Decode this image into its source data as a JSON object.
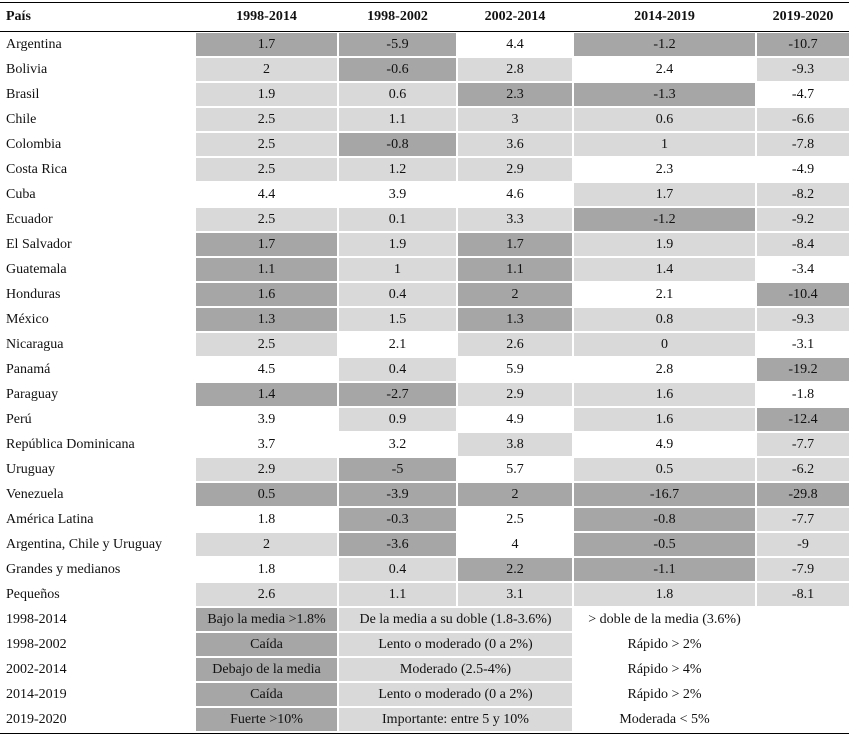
{
  "palette": {
    "dark": "#a6a6a6",
    "light": "#d9d9d9",
    "white": "#ffffff"
  },
  "table": {
    "header": [
      "País",
      "1998-2014",
      "1998-2002",
      "2002-2014",
      "2014-2019",
      "2019-2020"
    ],
    "rows": [
      {
        "cells": [
          "Argentina",
          "1.7",
          "-5.9",
          "4.4",
          "-1.2",
          "-10.7"
        ],
        "shades": [
          "dark",
          "dark",
          "white",
          "dark",
          "dark"
        ]
      },
      {
        "cells": [
          "Bolivia",
          "2",
          "-0.6",
          "2.8",
          "2.4",
          "-9.3"
        ],
        "shades": [
          "light",
          "dark",
          "light",
          "white",
          "light"
        ]
      },
      {
        "cells": [
          "Brasil",
          "1.9",
          "0.6",
          "2.3",
          "-1.3",
          "-4.7"
        ],
        "shades": [
          "light",
          "light",
          "dark",
          "dark",
          "white"
        ]
      },
      {
        "cells": [
          "Chile",
          "2.5",
          "1.1",
          "3",
          "0.6",
          "-6.6"
        ],
        "shades": [
          "light",
          "light",
          "light",
          "light",
          "light"
        ]
      },
      {
        "cells": [
          "Colombia",
          "2.5",
          "-0.8",
          "3.6",
          "1",
          "-7.8"
        ],
        "shades": [
          "light",
          "dark",
          "light",
          "light",
          "light"
        ]
      },
      {
        "cells": [
          "Costa Rica",
          "2.5",
          "1.2",
          "2.9",
          "2.3",
          "-4.9"
        ],
        "shades": [
          "light",
          "light",
          "light",
          "white",
          "white"
        ]
      },
      {
        "cells": [
          "Cuba",
          "4.4",
          "3.9",
          "4.6",
          "1.7",
          "-8.2"
        ],
        "shades": [
          "white",
          "white",
          "white",
          "light",
          "light"
        ]
      },
      {
        "cells": [
          "Ecuador",
          "2.5",
          "0.1",
          "3.3",
          "-1.2",
          "-9.2"
        ],
        "shades": [
          "light",
          "light",
          "light",
          "dark",
          "light"
        ]
      },
      {
        "cells": [
          "El Salvador",
          "1.7",
          "1.9",
          "1.7",
          "1.9",
          "-8.4"
        ],
        "shades": [
          "dark",
          "light",
          "dark",
          "light",
          "light"
        ]
      },
      {
        "cells": [
          "Guatemala",
          "1.1",
          "1",
          "1.1",
          "1.4",
          "-3.4"
        ],
        "shades": [
          "dark",
          "light",
          "dark",
          "light",
          "white"
        ]
      },
      {
        "cells": [
          "Honduras",
          "1.6",
          "0.4",
          "2",
          "2.1",
          "-10.4"
        ],
        "shades": [
          "dark",
          "light",
          "dark",
          "white",
          "dark"
        ]
      },
      {
        "cells": [
          "México",
          "1.3",
          "1.5",
          "1.3",
          "0.8",
          "-9.3"
        ],
        "shades": [
          "dark",
          "light",
          "dark",
          "light",
          "light"
        ]
      },
      {
        "cells": [
          "Nicaragua",
          "2.5",
          "2.1",
          "2.6",
          "0",
          "-3.1"
        ],
        "shades": [
          "light",
          "white",
          "light",
          "light",
          "white"
        ]
      },
      {
        "cells": [
          "Panamá",
          "4.5",
          "0.4",
          "5.9",
          "2.8",
          "-19.2"
        ],
        "shades": [
          "white",
          "light",
          "white",
          "white",
          "dark"
        ]
      },
      {
        "cells": [
          "Paraguay",
          "1.4",
          "-2.7",
          "2.9",
          "1.6",
          "-1.8"
        ],
        "shades": [
          "dark",
          "dark",
          "light",
          "light",
          "white"
        ]
      },
      {
        "cells": [
          "Perú",
          "3.9",
          "0.9",
          "4.9",
          "1.6",
          "-12.4"
        ],
        "shades": [
          "white",
          "light",
          "white",
          "light",
          "dark"
        ]
      },
      {
        "cells": [
          "República Dominicana",
          "3.7",
          "3.2",
          "3.8",
          "4.9",
          "-7.7"
        ],
        "shades": [
          "white",
          "white",
          "light",
          "white",
          "light"
        ]
      },
      {
        "cells": [
          "Uruguay",
          "2.9",
          "-5",
          "5.7",
          "0.5",
          "-6.2"
        ],
        "shades": [
          "light",
          "dark",
          "white",
          "light",
          "light"
        ]
      },
      {
        "cells": [
          "Venezuela",
          "0.5",
          "-3.9",
          "2",
          "-16.7",
          "-29.8"
        ],
        "shades": [
          "dark",
          "dark",
          "dark",
          "dark",
          "dark"
        ]
      },
      {
        "cells": [
          "América Latina",
          "1.8",
          "-0.3",
          "2.5",
          "-0.8",
          "-7.7"
        ],
        "shades": [
          "white",
          "dark",
          "white",
          "dark",
          "light"
        ]
      },
      {
        "cells": [
          "Argentina, Chile y Uruguay",
          "2",
          "-3.6",
          "4",
          "-0.5",
          "-9"
        ],
        "shades": [
          "light",
          "dark",
          "white",
          "dark",
          "light"
        ]
      },
      {
        "cells": [
          "Grandes y medianos",
          "1.8",
          "0.4",
          "2.2",
          "-1.1",
          "-7.9"
        ],
        "shades": [
          "white",
          "light",
          "dark",
          "dark",
          "light"
        ]
      },
      {
        "cells": [
          "Pequeños",
          "2.6",
          "1.1",
          "3.1",
          "1.8",
          "-8.1"
        ],
        "shades": [
          "light",
          "light",
          "light",
          "light",
          "light"
        ]
      }
    ]
  },
  "legend": {
    "rows": [
      {
        "label": "1998-2014",
        "items": [
          {
            "text": "Bajo la media >1.8%",
            "shade": "dark"
          },
          {
            "text": "De la media a su doble (1.8-3.6%)",
            "shade": "light"
          },
          {
            "text": "> doble de la media (3.6%)",
            "shade": "white"
          }
        ]
      },
      {
        "label": "1998-2002",
        "items": [
          {
            "text": "Caída",
            "shade": "dark"
          },
          {
            "text": "Lento o moderado (0 a 2%)",
            "shade": "light"
          },
          {
            "text": "Rápido > 2%",
            "shade": "white"
          }
        ]
      },
      {
        "label": "2002-2014",
        "items": [
          {
            "text": "Debajo de la media",
            "shade": "dark"
          },
          {
            "text": "Moderado (2.5-4%)",
            "shade": "light"
          },
          {
            "text": "Rápido > 4%",
            "shade": "white"
          }
        ]
      },
      {
        "label": "2014-2019",
        "items": [
          {
            "text": "Caída",
            "shade": "dark"
          },
          {
            "text": "Lento o moderado (0 a 2%)",
            "shade": "light"
          },
          {
            "text": "Rápido > 2%",
            "shade": "white"
          }
        ]
      },
      {
        "label": "2019-2020",
        "items": [
          {
            "text": "Fuerte >10%",
            "shade": "dark"
          },
          {
            "text": "Importante: entre 5 y 10%",
            "shade": "light"
          },
          {
            "text": "Moderada < 5%",
            "shade": "white"
          }
        ]
      }
    ]
  }
}
